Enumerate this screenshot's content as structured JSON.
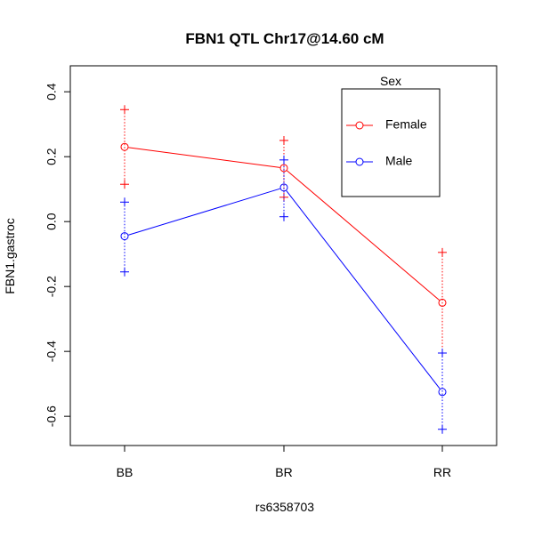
{
  "chart_data": {
    "type": "line",
    "title": "FBN1 QTL Chr17@14.60 cM",
    "xlabel": "rs6358703",
    "ylabel": "FBN1.gastroc",
    "categories": [
      "BB",
      "BR",
      "RR"
    ],
    "ylim": [
      -0.69,
      0.48
    ],
    "yticks": [
      0.4,
      0.2,
      0.0,
      -0.2,
      -0.4,
      -0.6
    ],
    "ytick_labels": [
      "0.4",
      "0.2",
      "0.0",
      "-0.2",
      "-0.4",
      "-0.6"
    ],
    "grid": false,
    "legend": {
      "title": "Sex",
      "placement": "top-right"
    },
    "series": [
      {
        "name": "Female",
        "color": "#ff0000",
        "values": [
          0.23,
          0.165,
          -0.25
        ],
        "lower": [
          0.115,
          0.075,
          -0.405
        ],
        "upper": [
          0.345,
          0.25,
          -0.095
        ]
      },
      {
        "name": "Male",
        "color": "#0000ff",
        "values": [
          -0.045,
          0.105,
          -0.525
        ],
        "lower": [
          -0.155,
          0.015,
          -0.64
        ],
        "upper": [
          0.06,
          0.19,
          -0.405
        ]
      }
    ]
  }
}
